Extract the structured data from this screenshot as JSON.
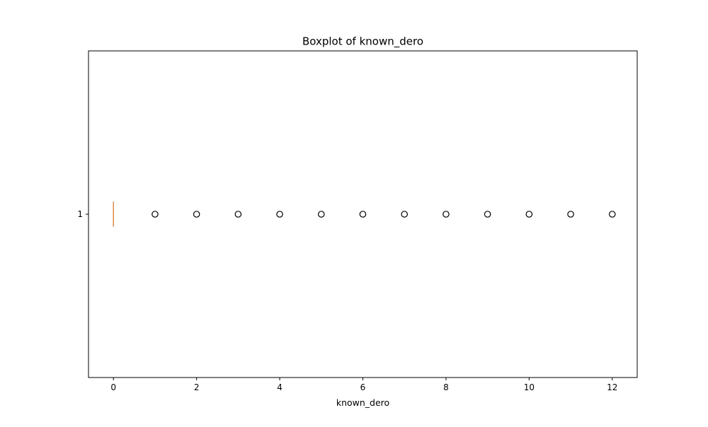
{
  "chart_data": {
    "type": "boxplot",
    "orientation": "horizontal",
    "title": "Boxplot of known_dero",
    "xlabel": "known_dero",
    "ylabel": "",
    "xlim": [
      -0.6,
      12.6
    ],
    "x_ticks": [
      0,
      2,
      4,
      6,
      8,
      10,
      12
    ],
    "y_categories": [
      "1"
    ],
    "grid": false,
    "series": [
      {
        "category": "1",
        "q1": 0,
        "median": 0,
        "q3": 0,
        "whisker_low": 0,
        "whisker_high": 0,
        "outliers": [
          1,
          2,
          3,
          4,
          5,
          6,
          7,
          8,
          9,
          10,
          11,
          12
        ]
      }
    ],
    "colors": {
      "median": "#e08e47",
      "box": "#000000",
      "outlier_edge": "#000000"
    }
  }
}
